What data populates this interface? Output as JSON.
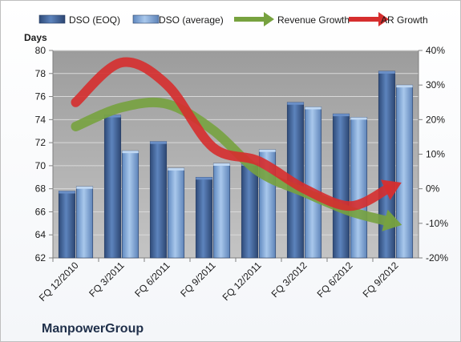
{
  "chart_data": {
    "type": "bar",
    "categories": [
      "FQ 12/2010",
      "FQ 3/2011",
      "FQ 6/2011",
      "FQ 9/2011",
      "FQ 12/2011",
      "FQ 3/2012",
      "FQ 6/2012",
      "FQ 9/2012"
    ],
    "series": [
      {
        "name": "DSO (EOQ)",
        "kind": "bar",
        "axis": "left",
        "color": "#4a6fa5",
        "values": [
          67.8,
          74.4,
          72.1,
          69.0,
          70.2,
          75.5,
          74.5,
          78.2
        ]
      },
      {
        "name": "DSO (average)",
        "kind": "bar",
        "axis": "left",
        "color": "#8db4e2",
        "values": [
          68.2,
          71.3,
          69.8,
          70.2,
          71.4,
          75.1,
          74.2,
          77.0
        ]
      },
      {
        "name": "Revenue Growth",
        "kind": "line",
        "axis": "right",
        "color": "#77a23f",
        "values": [
          18,
          23.5,
          24.5,
          17,
          5,
          -1,
          -6.5,
          -10
        ]
      },
      {
        "name": "AR Growth",
        "kind": "line",
        "axis": "right",
        "color": "#d62e2e",
        "values": [
          25,
          36.5,
          30,
          12,
          8,
          0,
          -5,
          1
        ]
      }
    ],
    "ylabel": "Days",
    "ylim": [
      62,
      80
    ],
    "yticks": [
      "62",
      "64",
      "66",
      "68",
      "70",
      "72",
      "74",
      "76",
      "78",
      "80"
    ],
    "y2lim": [
      -20,
      40
    ],
    "y2ticks": [
      "-20%",
      "-10%",
      "0%",
      "10%",
      "20%",
      "30%",
      "40%"
    ],
    "legend": "top",
    "grid": true,
    "plot_background": "#a6a6a6"
  },
  "company_name": "ManpowerGroup"
}
